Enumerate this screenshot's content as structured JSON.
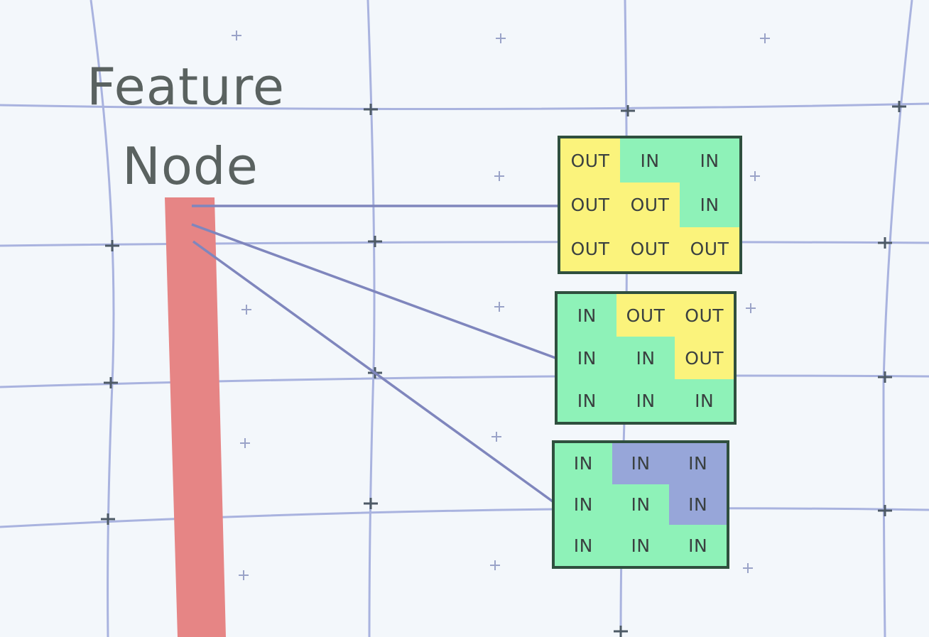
{
  "title": {
    "line1": "Feature",
    "line2": "Node"
  },
  "colors": {
    "background": "#f3f7fb",
    "grid_line": "#a9b3df",
    "node_bar": "#e68585",
    "connector": "#7f86bd",
    "cell_out": "#fbf37c",
    "cell_in_green": "#8ef2b8",
    "cell_in_blue": "#97a6d9",
    "border": "#2f4f3e"
  },
  "grids": [
    {
      "cells": [
        {
          "label": "OUT",
          "tone": "out"
        },
        {
          "label": "IN",
          "tone": "in"
        },
        {
          "label": "IN",
          "tone": "in"
        },
        {
          "label": "OUT",
          "tone": "out"
        },
        {
          "label": "OUT",
          "tone": "out"
        },
        {
          "label": "IN",
          "tone": "in"
        },
        {
          "label": "OUT",
          "tone": "out"
        },
        {
          "label": "OUT",
          "tone": "out"
        },
        {
          "label": "OUT",
          "tone": "out"
        }
      ]
    },
    {
      "cells": [
        {
          "label": "IN",
          "tone": "in"
        },
        {
          "label": "OUT",
          "tone": "out"
        },
        {
          "label": "OUT",
          "tone": "out"
        },
        {
          "label": "IN",
          "tone": "in"
        },
        {
          "label": "IN",
          "tone": "in"
        },
        {
          "label": "OUT",
          "tone": "out"
        },
        {
          "label": "IN",
          "tone": "in"
        },
        {
          "label": "IN",
          "tone": "in"
        },
        {
          "label": "IN",
          "tone": "in"
        }
      ]
    },
    {
      "cells": [
        {
          "label": "IN",
          "tone": "in"
        },
        {
          "label": "IN",
          "tone": "in-blue"
        },
        {
          "label": "IN",
          "tone": "in-blue"
        },
        {
          "label": "IN",
          "tone": "in"
        },
        {
          "label": "IN",
          "tone": "in"
        },
        {
          "label": "IN",
          "tone": "in-blue"
        },
        {
          "label": "IN",
          "tone": "in"
        },
        {
          "label": "IN",
          "tone": "in"
        },
        {
          "label": "IN",
          "tone": "in"
        }
      ]
    }
  ]
}
